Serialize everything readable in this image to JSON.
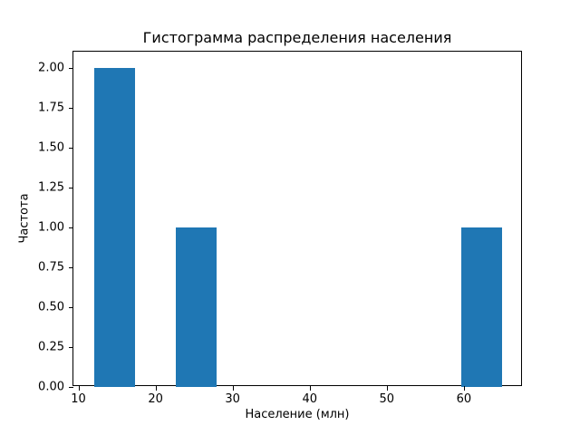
{
  "chart_data": {
    "type": "bar",
    "subtype": "histogram",
    "title": "Гистограмма распределения населения",
    "xlabel": "Население (млн)",
    "ylabel": "Частота",
    "bin_edges": [
      12.0,
      17.3,
      22.6,
      27.9,
      33.2,
      38.5,
      43.8,
      49.1,
      54.4,
      59.7,
      65.0
    ],
    "counts": [
      2,
      0,
      1,
      0,
      0,
      0,
      0,
      0,
      0,
      1
    ],
    "xlim": [
      9.35,
      67.65
    ],
    "ylim": [
      0,
      2.1
    ],
    "xticks": {
      "values": [
        10,
        20,
        30,
        40,
        50,
        60
      ],
      "labels": [
        "10",
        "20",
        "30",
        "40",
        "50",
        "60"
      ]
    },
    "yticks": {
      "values": [
        0,
        0.25,
        0.5,
        0.75,
        1.0,
        1.25,
        1.5,
        1.75,
        2.0
      ],
      "labels": [
        "0.00",
        "0.25",
        "0.50",
        "0.75",
        "1.00",
        "1.25",
        "1.50",
        "1.75",
        "2.00"
      ]
    },
    "bar_color": "#1f77b4",
    "axis_color": "#000000",
    "grid": false,
    "legend": null
  }
}
